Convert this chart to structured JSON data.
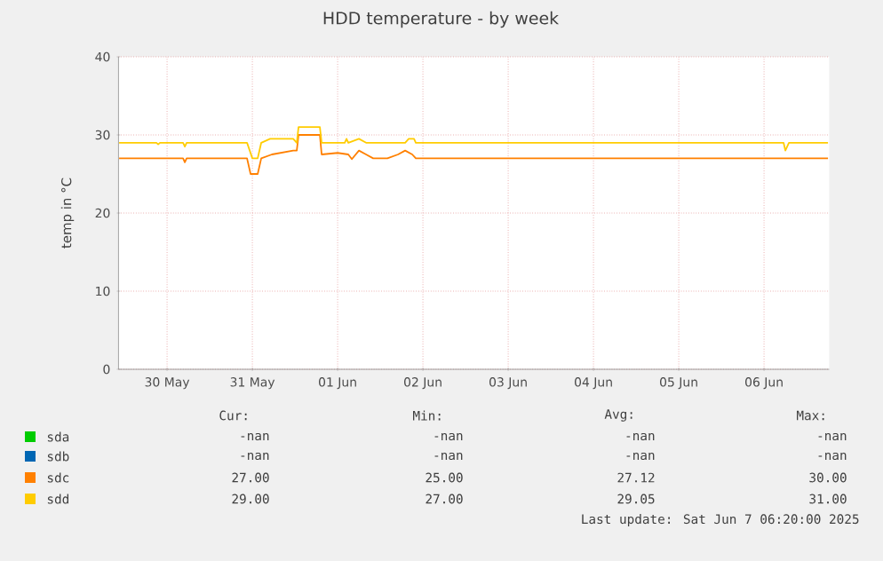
{
  "chart_data": {
    "type": "line",
    "title": "HDD temperature - by week",
    "ylabel": "temp in °C",
    "xlim": [
      "2025-05-29T22:20",
      "2025-06-07T06:20"
    ],
    "xticks": [
      {
        "value": "2025-05-30T12:00",
        "label": "30 May"
      },
      {
        "value": "2025-05-31T12:00",
        "label": "31 May"
      },
      {
        "value": "2025-06-01T12:00",
        "label": "01 Jun"
      },
      {
        "value": "2025-06-02T12:00",
        "label": "02 Jun"
      },
      {
        "value": "2025-06-03T12:00",
        "label": "03 Jun"
      },
      {
        "value": "2025-06-04T12:00",
        "label": "04 Jun"
      },
      {
        "value": "2025-06-05T12:00",
        "label": "05 Jun"
      },
      {
        "value": "2025-06-06T12:00",
        "label": "06 Jun"
      }
    ],
    "ylim": [
      0,
      40
    ],
    "yticks": [
      0,
      10,
      20,
      30,
      40
    ],
    "grid": true,
    "legend": "bottom",
    "marker": "none",
    "line_style": "solid",
    "series": [
      {
        "name": "sda",
        "color": "#00cc00",
        "values": [
          null
        ]
      },
      {
        "name": "sdb",
        "color": "#0066b3",
        "values": [
          null
        ]
      },
      {
        "name": "sdc",
        "color": "#ff8000",
        "x": [
          "2025-05-29T22:30",
          "2025-05-30T16:30",
          "2025-05-30T17:00",
          "2025-05-30T17:30",
          "2025-05-31T10:30",
          "2025-05-31T11:30",
          "2025-05-31T13:30",
          "2025-05-31T14:30",
          "2025-05-31T17:30",
          "2025-05-31T23:30",
          "2025-06-01T00:30",
          "2025-06-01T01:00",
          "2025-06-01T07:00",
          "2025-06-01T07:30",
          "2025-06-01T12:00",
          "2025-06-01T15:00",
          "2025-06-01T16:00",
          "2025-06-01T18:00",
          "2025-06-01T20:00",
          "2025-06-01T22:00",
          "2025-06-02T02:00",
          "2025-06-02T05:00",
          "2025-06-02T07:00",
          "2025-06-02T09:00",
          "2025-06-02T10:00",
          "2025-06-07T06:00"
        ],
        "values": [
          27,
          27,
          26.5,
          27,
          27,
          25,
          25,
          27,
          27.5,
          28,
          28,
          30,
          30,
          27.5,
          27.7,
          27.5,
          26.9,
          28,
          27.5,
          27,
          27,
          27.5,
          28,
          27.5,
          27,
          27
        ]
      },
      {
        "name": "sdd",
        "color": "#ffcc00",
        "x": [
          "2025-05-29T22:30",
          "2025-05-30T09:00",
          "2025-05-30T09:30",
          "2025-05-30T10:00",
          "2025-05-30T16:30",
          "2025-05-30T17:00",
          "2025-05-30T17:30",
          "2025-05-31T10:30",
          "2025-05-31T12:00",
          "2025-05-31T13:30",
          "2025-05-31T14:30",
          "2025-05-31T17:00",
          "2025-05-31T23:30",
          "2025-06-01T00:30",
          "2025-06-01T01:00",
          "2025-06-01T07:00",
          "2025-06-01T07:30",
          "2025-06-01T14:00",
          "2025-06-01T14:30",
          "2025-06-01T15:00",
          "2025-06-01T18:00",
          "2025-06-01T20:00",
          "2025-06-02T07:00",
          "2025-06-02T08:00",
          "2025-06-02T09:30",
          "2025-06-02T10:00",
          "2025-06-06T17:30",
          "2025-06-06T18:00",
          "2025-06-06T19:00",
          "2025-06-07T06:00"
        ],
        "values": [
          29,
          29,
          28.8,
          29,
          29,
          28.5,
          29,
          29,
          27,
          27,
          29,
          29.5,
          29.5,
          29,
          31,
          31,
          29,
          29,
          29.5,
          29,
          29.5,
          29,
          29,
          29.5,
          29.5,
          29,
          29,
          28,
          29,
          29
        ]
      }
    ],
    "annotations": [
      "Cur:",
      "Min:",
      "Avg:",
      "Max:",
      "-nan",
      "-nan",
      "-nan",
      "-nan",
      "-nan",
      "-nan",
      "-nan",
      "-nan",
      "27.00",
      "25.00",
      "27.12",
      "30.00",
      "29.00",
      "27.00",
      "29.05",
      "31.00",
      "Last update:  Sat Jun  7 06:20:00 2025"
    ]
  }
}
